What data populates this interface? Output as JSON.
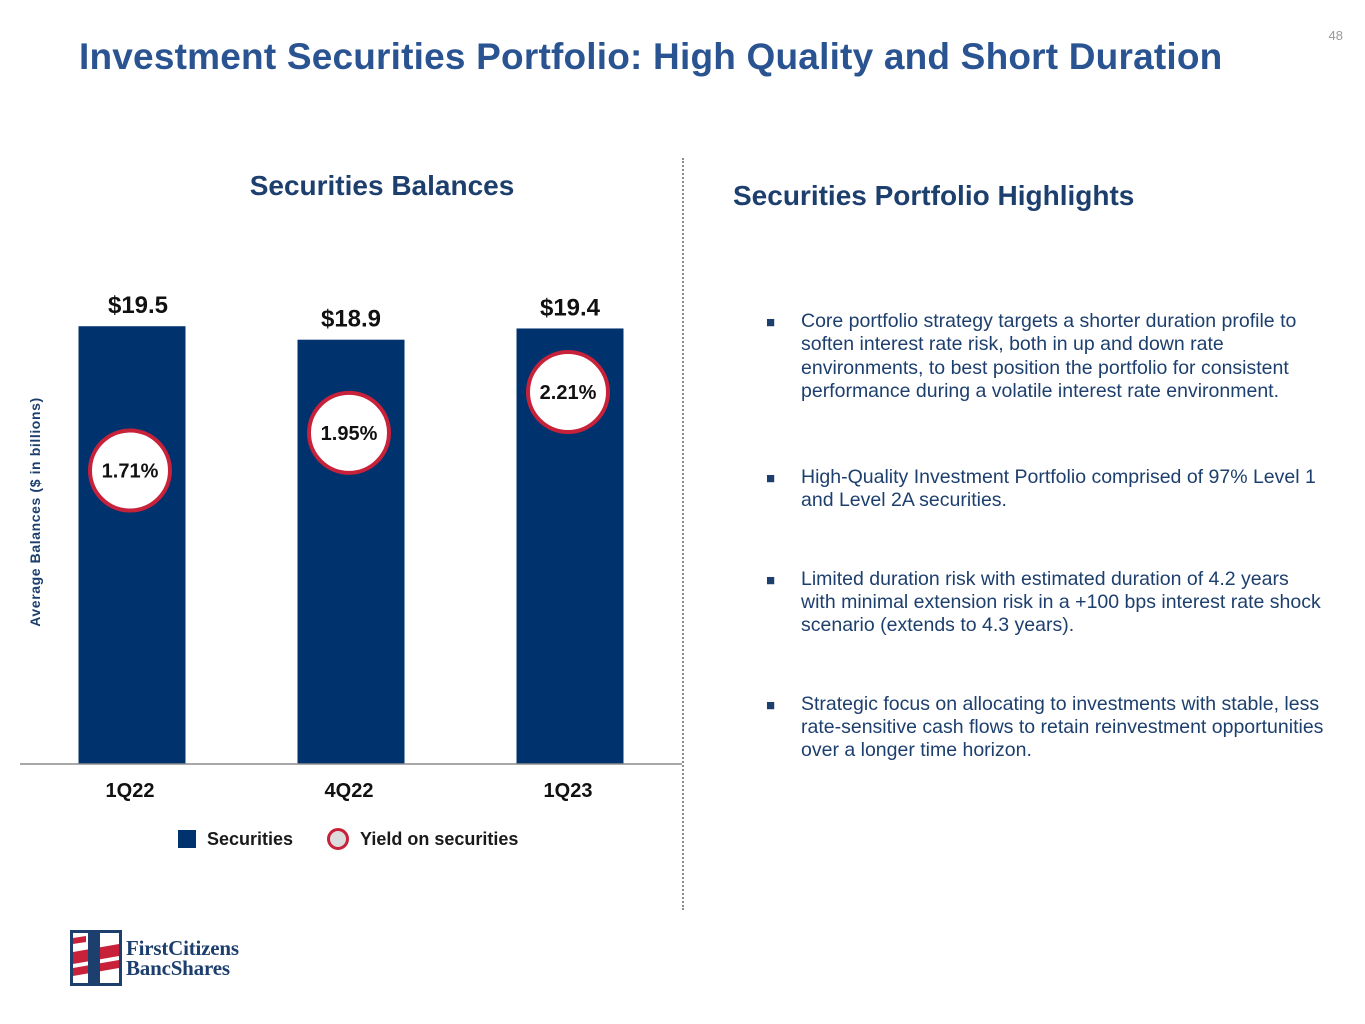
{
  "page_number": "48",
  "title": "Investment Securities Portfolio: High Quality and Short Duration",
  "chart_title": "Securities Balances",
  "chart_data": {
    "type": "bar",
    "categories": [
      "1Q22",
      "4Q22",
      "1Q23"
    ],
    "series": [
      {
        "name": "Securities",
        "values": [
          19.5,
          18.9,
          19.4
        ]
      },
      {
        "name": "Yield on securities",
        "values": [
          1.71,
          1.95,
          2.21
        ]
      }
    ],
    "value_labels": [
      "$19.5",
      "$18.9",
      "$19.4"
    ],
    "yield_labels": [
      "1.71%",
      "1.95%",
      "2.21%"
    ],
    "ylabel": "Average Balances ($ in billions)",
    "ylim": [
      0,
      20
    ],
    "yield_range": [
      0,
      3
    ],
    "legend": [
      "Securities",
      "Yield on securities"
    ],
    "colors": {
      "bar": "#00336e",
      "yield_ring": "#c8213a",
      "axis": "#8c8c8c"
    }
  },
  "highlights": {
    "title": "Securities Portfolio Highlights",
    "marker": "■",
    "items": [
      "Core portfolio strategy targets a shorter duration profile to soften interest rate risk, both in up and down rate environments, to best position the portfolio for consistent performance during a volatile interest rate environment.",
      "High-Quality Investment Portfolio comprised of 97% Level 1 and Level 2A securities.",
      "Limited duration risk with estimated duration of 4.2 years with minimal extension risk in a +100 bps interest rate shock scenario (extends to 4.3 years).",
      "Strategic focus on allocating to investments with stable, less rate-sensitive cash flows to retain reinvestment opportunities over a longer time horizon."
    ]
  },
  "logo": {
    "line1": "FirstCitizens",
    "line2": "BancShares"
  }
}
